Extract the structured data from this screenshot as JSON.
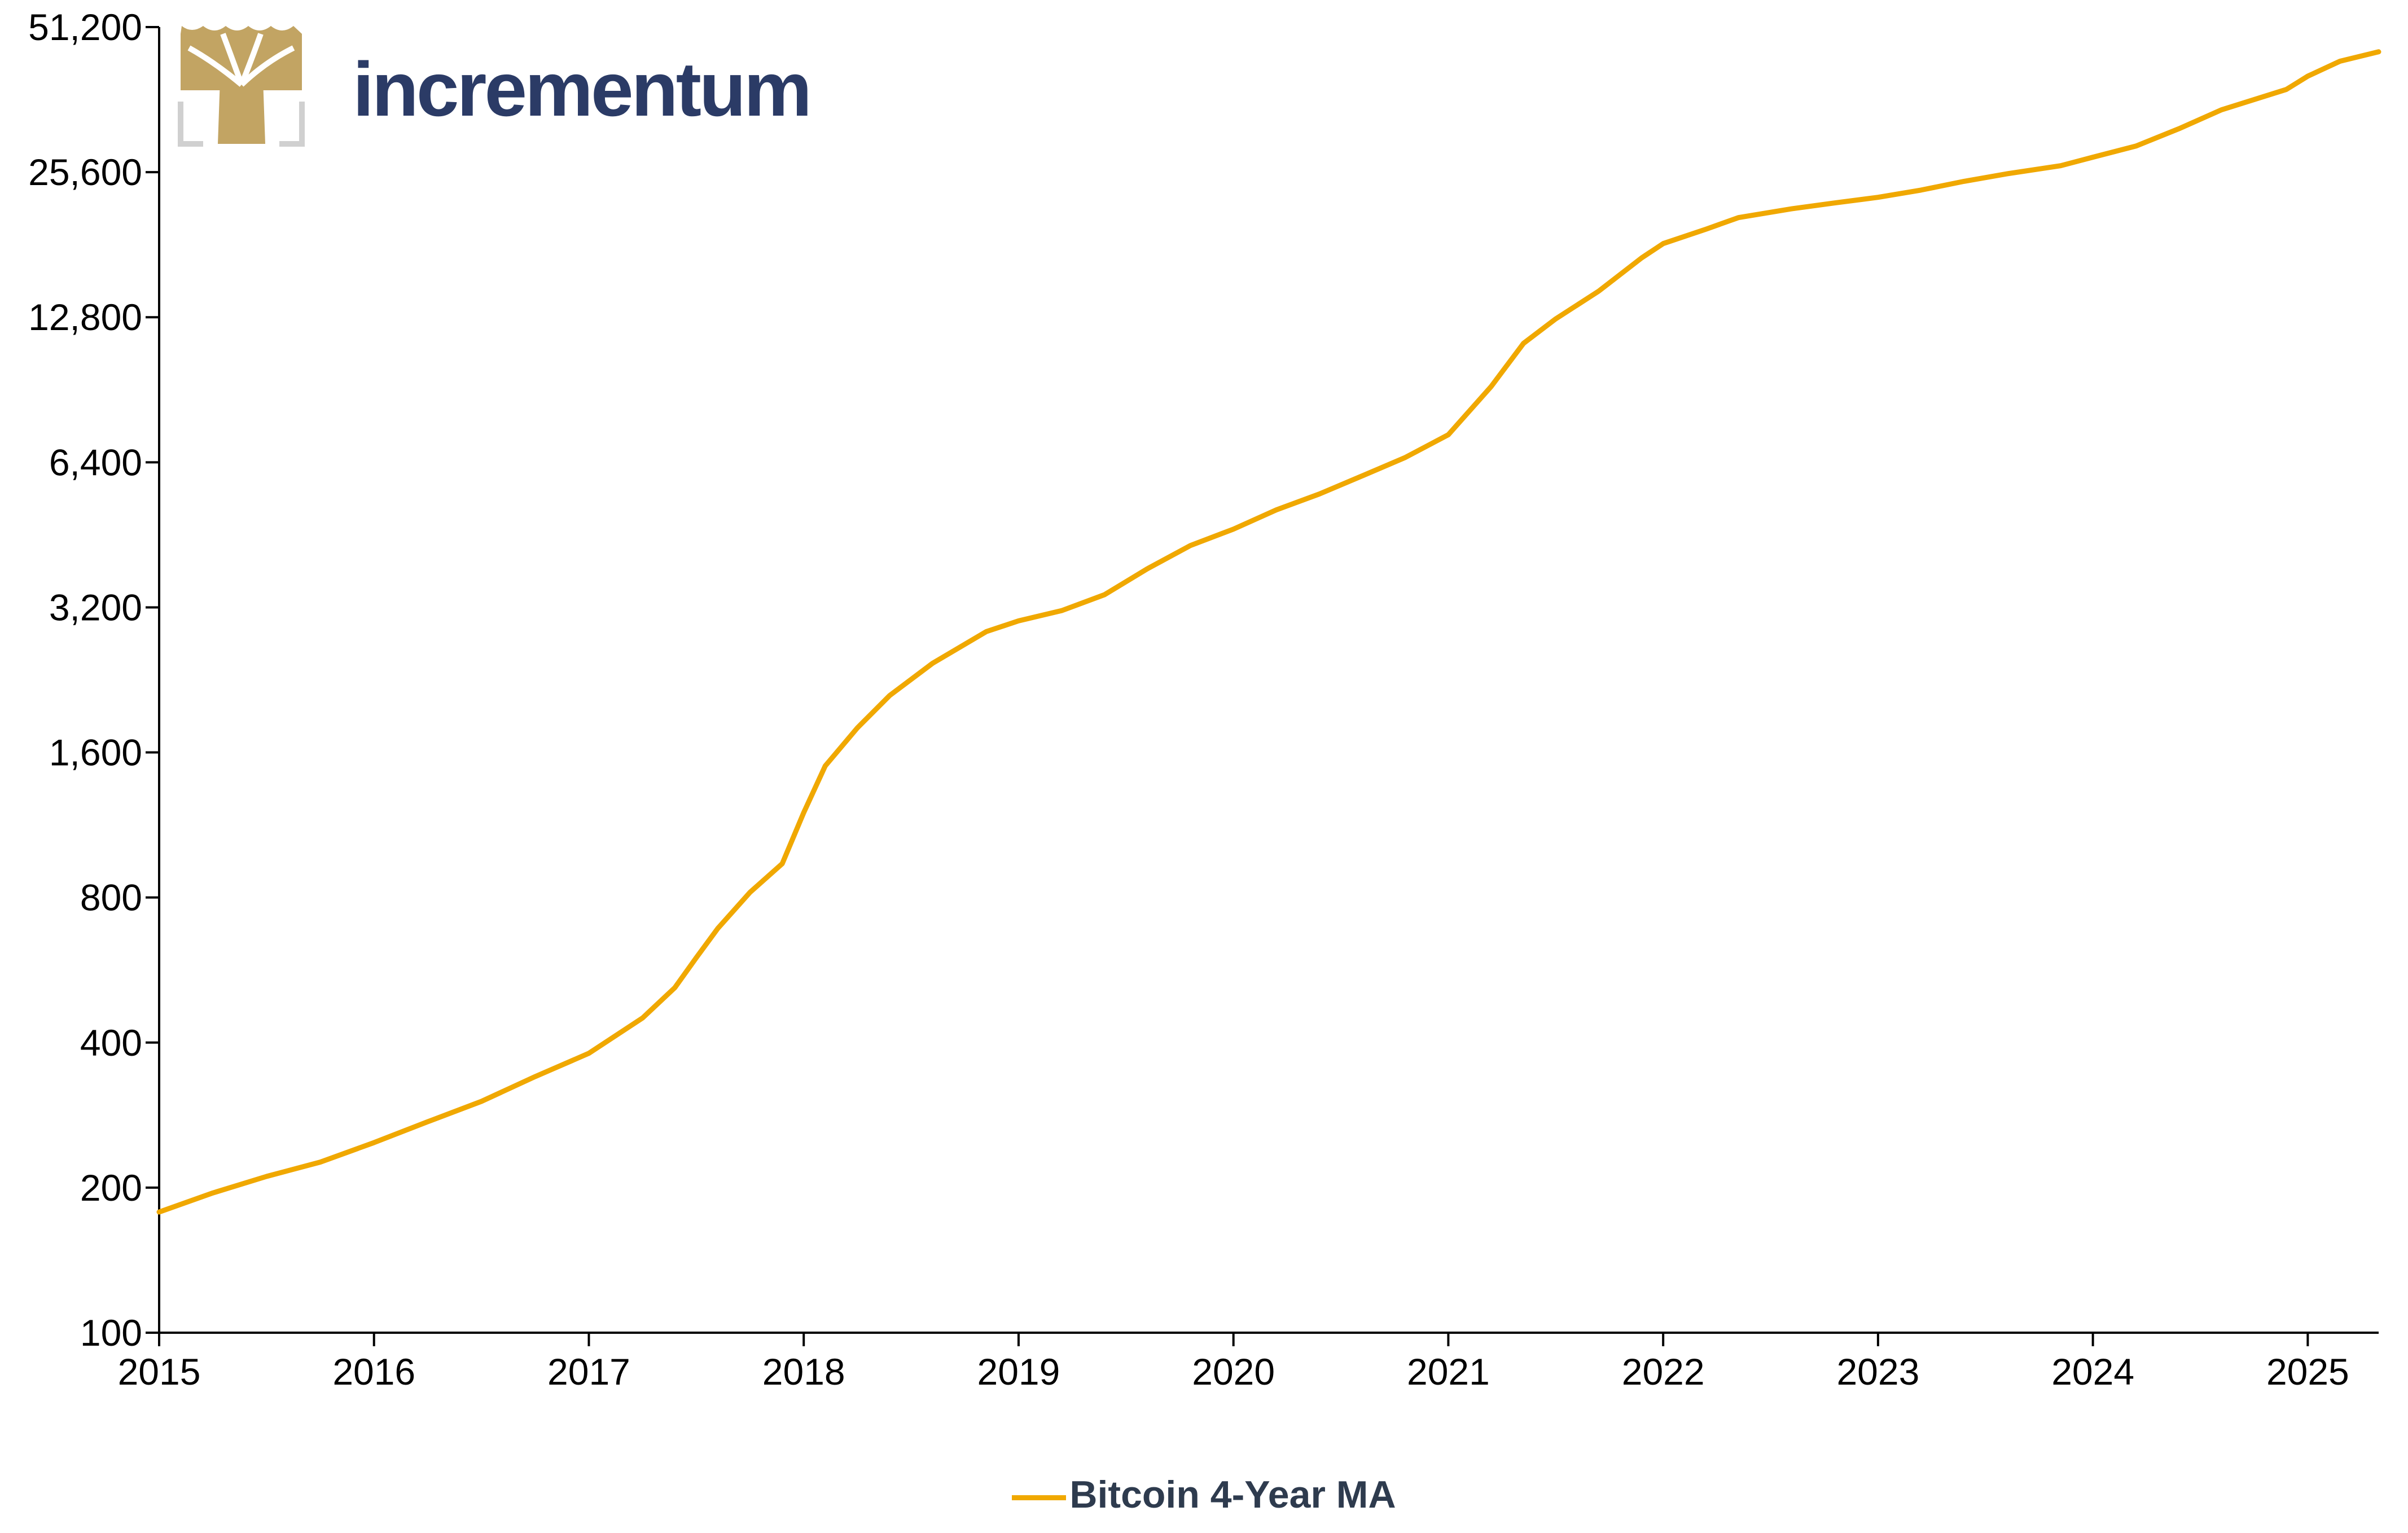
{
  "brand": {
    "name": "incrementum",
    "name_color": "#2b3b66",
    "logo_icon": "tree-icon",
    "logo_color": "#c2a463"
  },
  "colors": {
    "series": "#f0a800",
    "axis": "#000000"
  },
  "chart_data": {
    "type": "line",
    "title": "",
    "xlabel": "",
    "ylabel": "",
    "yscale": "log2",
    "ylim": [
      100,
      51200
    ],
    "xlim": [
      2015,
      2025.33
    ],
    "y_ticks": [
      100,
      200,
      400,
      800,
      1600,
      3200,
      6400,
      12800,
      25600,
      51200
    ],
    "y_tick_labels": [
      "100",
      "200",
      "400",
      "800",
      "1,600",
      "3,200",
      "6,400",
      "12,800",
      "25,600",
      "51,200"
    ],
    "x_ticks": [
      2015,
      2016,
      2017,
      2018,
      2019,
      2020,
      2021,
      2022,
      2023,
      2024,
      2025
    ],
    "x_tick_labels": [
      "2015",
      "2016",
      "2017",
      "2018",
      "2019",
      "2020",
      "2021",
      "2022",
      "2023",
      "2024",
      "2025"
    ],
    "grid": false,
    "legend_position": "bottom",
    "series": [
      {
        "name": "Bitcoin 4-Year MA",
        "x": [
          2015.0,
          2015.25,
          2015.5,
          2015.75,
          2016.0,
          2016.25,
          2016.5,
          2016.75,
          2017.0,
          2017.25,
          2017.4,
          2017.5,
          2017.6,
          2017.75,
          2017.9,
          2018.0,
          2018.1,
          2018.25,
          2018.4,
          2018.6,
          2018.85,
          2019.0,
          2019.2,
          2019.4,
          2019.6,
          2019.8,
          2020.0,
          2020.2,
          2020.4,
          2020.6,
          2020.8,
          2021.0,
          2021.2,
          2021.35,
          2021.5,
          2021.7,
          2021.9,
          2022.0,
          2022.2,
          2022.35,
          2022.6,
          2022.8,
          2023.0,
          2023.2,
          2023.4,
          2023.6,
          2023.85,
          2024.0,
          2024.2,
          2024.4,
          2024.6,
          2024.9,
          2025.0,
          2025.15,
          2025.33
        ],
        "values": [
          178,
          195,
          211,
          226,
          248,
          274,
          302,
          340,
          380,
          450,
          520,
          600,
          690,
          820,
          940,
          1200,
          1500,
          1800,
          2100,
          2450,
          2850,
          3000,
          3150,
          3400,
          3850,
          4300,
          4650,
          5100,
          5500,
          6000,
          6550,
          7300,
          9200,
          11300,
          12700,
          14500,
          17000,
          18200,
          19500,
          20600,
          21500,
          22100,
          22700,
          23500,
          24500,
          25400,
          26400,
          27500,
          29000,
          31500,
          34500,
          38000,
          40500,
          43500,
          45500
        ]
      }
    ]
  }
}
